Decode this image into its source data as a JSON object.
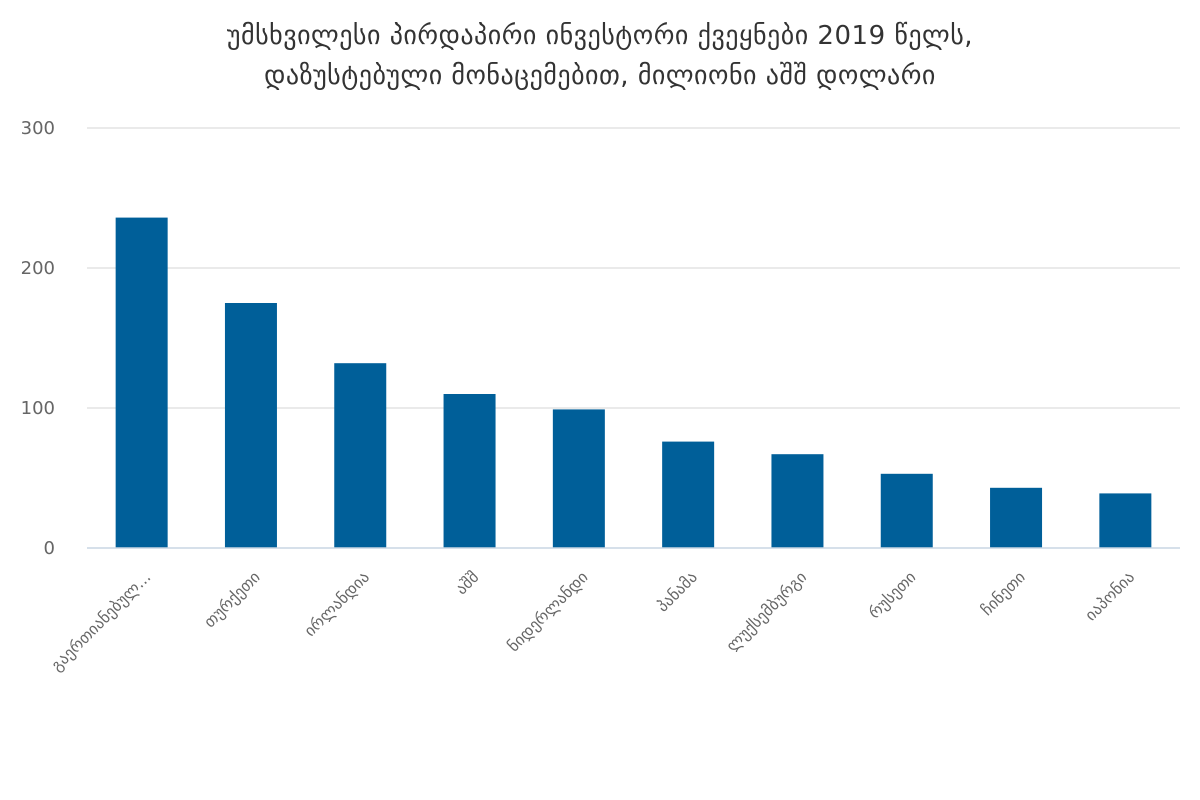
{
  "chart_data": {
    "type": "bar",
    "title_lines": [
      "უმსხვილესი პირდაპირი ინვესტორი ქვეყნები 2019 წელს,",
      "დაზუსტებული მონაცემებით, მილიონი აშშ დოლარი"
    ],
    "categories": [
      "გაერთიანებულ...",
      "თურქეთი",
      "ირლანდია",
      "აშშ",
      "ნიდერლანდი",
      "პანამა",
      "ლუქსემბურგი",
      "რუსეთი",
      "ჩინეთი",
      "იაპონია"
    ],
    "values": [
      236,
      175,
      132,
      110,
      99,
      76,
      67,
      53,
      43,
      39
    ],
    "ylim": [
      0,
      300
    ],
    "yticks": [
      "0",
      "100",
      "200",
      "300"
    ],
    "xlabel": "",
    "ylabel": "",
    "legend": "none",
    "grid": true,
    "bar_color": "#005f99"
  }
}
